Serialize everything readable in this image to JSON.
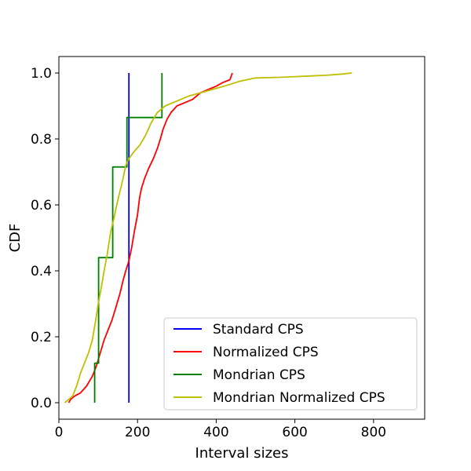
{
  "chart_data": {
    "type": "line",
    "title": "",
    "xlabel": "Interval sizes",
    "ylabel": "CDF",
    "xlim": [
      0,
      930
    ],
    "ylim": [
      -0.05,
      1.05
    ],
    "xticks": [
      0,
      200,
      400,
      600,
      800
    ],
    "yticks": [
      0.0,
      0.2,
      0.4,
      0.6,
      0.8,
      1.0
    ],
    "x_tick_labels": [
      "0",
      "200",
      "400",
      "600",
      "800"
    ],
    "y_tick_labels": [
      "0.0",
      "0.2",
      "0.4",
      "0.6",
      "0.8",
      "1.0"
    ],
    "grid": false,
    "legend_position": "bottom-right",
    "series": [
      {
        "name": "Standard CPS",
        "color": "#0000ff",
        "points": [
          [
            178,
            0.0
          ],
          [
            178,
            1.0
          ]
        ]
      },
      {
        "name": "Normalized CPS",
        "color": "#ff0000",
        "points": [
          [
            25,
            0.0
          ],
          [
            30,
            0.01
          ],
          [
            40,
            0.02
          ],
          [
            55,
            0.03
          ],
          [
            70,
            0.05
          ],
          [
            85,
            0.08
          ],
          [
            95,
            0.11
          ],
          [
            105,
            0.15
          ],
          [
            115,
            0.19
          ],
          [
            125,
            0.22
          ],
          [
            135,
            0.25
          ],
          [
            145,
            0.29
          ],
          [
            155,
            0.33
          ],
          [
            163,
            0.37
          ],
          [
            170,
            0.4
          ],
          [
            178,
            0.43
          ],
          [
            185,
            0.47
          ],
          [
            192,
            0.52
          ],
          [
            200,
            0.57
          ],
          [
            205,
            0.62
          ],
          [
            210,
            0.65
          ],
          [
            218,
            0.68
          ],
          [
            228,
            0.71
          ],
          [
            240,
            0.74
          ],
          [
            250,
            0.77
          ],
          [
            258,
            0.8
          ],
          [
            265,
            0.83
          ],
          [
            275,
            0.86
          ],
          [
            285,
            0.88
          ],
          [
            300,
            0.9
          ],
          [
            320,
            0.91
          ],
          [
            340,
            0.92
          ],
          [
            360,
            0.94
          ],
          [
            380,
            0.95
          ],
          [
            400,
            0.96
          ],
          [
            415,
            0.97
          ],
          [
            425,
            0.975
          ],
          [
            435,
            0.98
          ],
          [
            438,
            0.99
          ],
          [
            441,
            1.0
          ]
        ]
      },
      {
        "name": "Mondrian CPS",
        "color": "#008000",
        "points": [
          [
            91,
            0.0
          ],
          [
            91,
            0.12
          ],
          [
            101,
            0.12
          ],
          [
            101,
            0.44
          ],
          [
            137,
            0.44
          ],
          [
            137,
            0.715
          ],
          [
            173,
            0.715
          ],
          [
            173,
            0.865
          ],
          [
            262,
            0.865
          ],
          [
            262,
            1.0
          ]
        ]
      },
      {
        "name": "Mondrian Normalized CPS",
        "color": "#bfbf00",
        "points": [
          [
            15,
            0.0
          ],
          [
            25,
            0.01
          ],
          [
            35,
            0.02
          ],
          [
            45,
            0.05
          ],
          [
            55,
            0.09
          ],
          [
            65,
            0.12
          ],
          [
            75,
            0.15
          ],
          [
            85,
            0.19
          ],
          [
            95,
            0.26
          ],
          [
            100,
            0.3
          ],
          [
            108,
            0.35
          ],
          [
            115,
            0.4
          ],
          [
            123,
            0.45
          ],
          [
            132,
            0.52
          ],
          [
            140,
            0.56
          ],
          [
            147,
            0.6
          ],
          [
            155,
            0.64
          ],
          [
            163,
            0.68
          ],
          [
            170,
            0.72
          ],
          [
            178,
            0.74
          ],
          [
            190,
            0.76
          ],
          [
            205,
            0.78
          ],
          [
            220,
            0.81
          ],
          [
            235,
            0.85
          ],
          [
            250,
            0.88
          ],
          [
            270,
            0.9
          ],
          [
            300,
            0.915
          ],
          [
            330,
            0.93
          ],
          [
            360,
            0.94
          ],
          [
            390,
            0.95
          ],
          [
            420,
            0.96
          ],
          [
            460,
            0.975
          ],
          [
            500,
            0.985
          ],
          [
            560,
            0.987
          ],
          [
            620,
            0.99
          ],
          [
            680,
            0.993
          ],
          [
            720,
            0.997
          ],
          [
            745,
            1.0
          ]
        ]
      }
    ]
  }
}
